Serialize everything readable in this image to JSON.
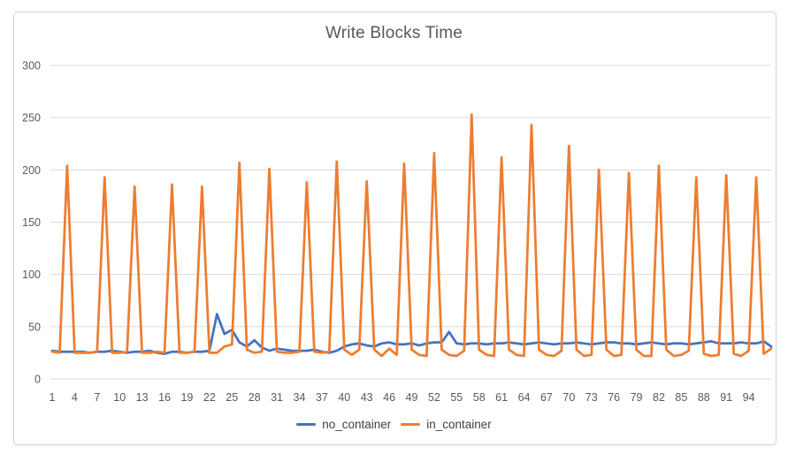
{
  "chart_data": {
    "type": "line",
    "title": "Write Blocks Time",
    "xlabel": "",
    "ylabel": "",
    "ylim": [
      0,
      300
    ],
    "y_ticks": [
      0,
      50,
      100,
      150,
      200,
      250,
      300
    ],
    "x_tick_labels": [
      1,
      4,
      7,
      10,
      13,
      16,
      19,
      22,
      25,
      28,
      31,
      34,
      37,
      40,
      43,
      46,
      49,
      52,
      55,
      58,
      61,
      64,
      67,
      70,
      73,
      76,
      79,
      82,
      85,
      88,
      91,
      94
    ],
    "x_range": {
      "start": 1,
      "end": 97,
      "step": 1
    },
    "grid": "horizontal",
    "grid_color": "#d9d9d9",
    "legend_position": "bottom",
    "series": [
      {
        "name": "no_container",
        "color": "#4472C4",
        "values": [
          27,
          26,
          26,
          26,
          26,
          25,
          26,
          26,
          27,
          26,
          25,
          26,
          26,
          27,
          25,
          24,
          26,
          26,
          25,
          26,
          26,
          27,
          62,
          43,
          47,
          35,
          31,
          37,
          30,
          27,
          29,
          28,
          27,
          27,
          27,
          28,
          26,
          25,
          27,
          31,
          33,
          34,
          32,
          31,
          34,
          35,
          33,
          33,
          34,
          32,
          34,
          35,
          35,
          45,
          34,
          33,
          34,
          34,
          33,
          34,
          34,
          35,
          34,
          33,
          34,
          35,
          34,
          33,
          34,
          34,
          35,
          34,
          33,
          34,
          35,
          35,
          34,
          34,
          33,
          34,
          35,
          34,
          33,
          34,
          34,
          33,
          34,
          35,
          36,
          34,
          34,
          34,
          35,
          34,
          34,
          36,
          31
        ]
      },
      {
        "name": "in_container",
        "color": "#ED7D31",
        "values": [
          26,
          25,
          204,
          25,
          25,
          25,
          26,
          193,
          25,
          25,
          26,
          184,
          25,
          25,
          26,
          25,
          186,
          25,
          25,
          26,
          184,
          25,
          25,
          31,
          33,
          207,
          28,
          25,
          26,
          201,
          26,
          25,
          25,
          26,
          188,
          26,
          25,
          26,
          208,
          28,
          23,
          28,
          189,
          28,
          22,
          29,
          23,
          206,
          28,
          23,
          22,
          216,
          28,
          23,
          22,
          27,
          253,
          28,
          23,
          22,
          212,
          28,
          23,
          22,
          243,
          28,
          23,
          22,
          27,
          223,
          28,
          22,
          23,
          200,
          28,
          22,
          23,
          197,
          28,
          22,
          22,
          204,
          28,
          22,
          23,
          27,
          193,
          24,
          22,
          23,
          195,
          24,
          22,
          27,
          193,
          24,
          29
        ]
      }
    ],
    "text_colors": {
      "title": "#595959",
      "ticks": "#595959",
      "legend": "#404040"
    }
  }
}
